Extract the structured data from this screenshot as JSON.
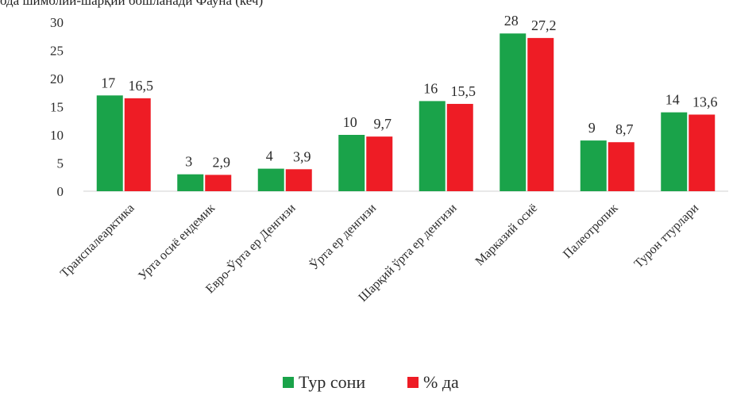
{
  "header_text": "ода шимолий-шарқий бошланади Фауна (кеч)",
  "chart_data": {
    "type": "bar",
    "categories": [
      "Транспалеарктика",
      "Урта осиё ендемик",
      "Евро-Ўрта ер Денгизи",
      "Ўрта ер денгизи",
      "Шарқий ўрта ер денгизи",
      "Марказий осиё",
      "Палеотропик",
      "Турон ттурлари"
    ],
    "series": [
      {
        "name": "Тур сони",
        "color": "#1aa34a",
        "values": [
          17,
          3,
          4,
          10,
          16,
          28,
          9,
          14
        ],
        "labels": [
          "17",
          "3",
          "4",
          "10",
          "16",
          "28",
          "9",
          "14"
        ]
      },
      {
        "name": "% да",
        "color": "#ee1c25",
        "values": [
          16.5,
          2.9,
          3.9,
          9.7,
          15.5,
          27.2,
          8.7,
          13.6
        ],
        "labels": [
          "16,5",
          "2,9",
          "3,9",
          "9,7",
          "15,5",
          "27,2",
          "8,7",
          "13,6"
        ]
      }
    ],
    "y_ticks": [
      "0",
      "5",
      "10",
      "15",
      "20",
      "25",
      "30"
    ],
    "ylim": [
      0,
      30
    ],
    "legend": "bottom-center",
    "grid": false
  }
}
